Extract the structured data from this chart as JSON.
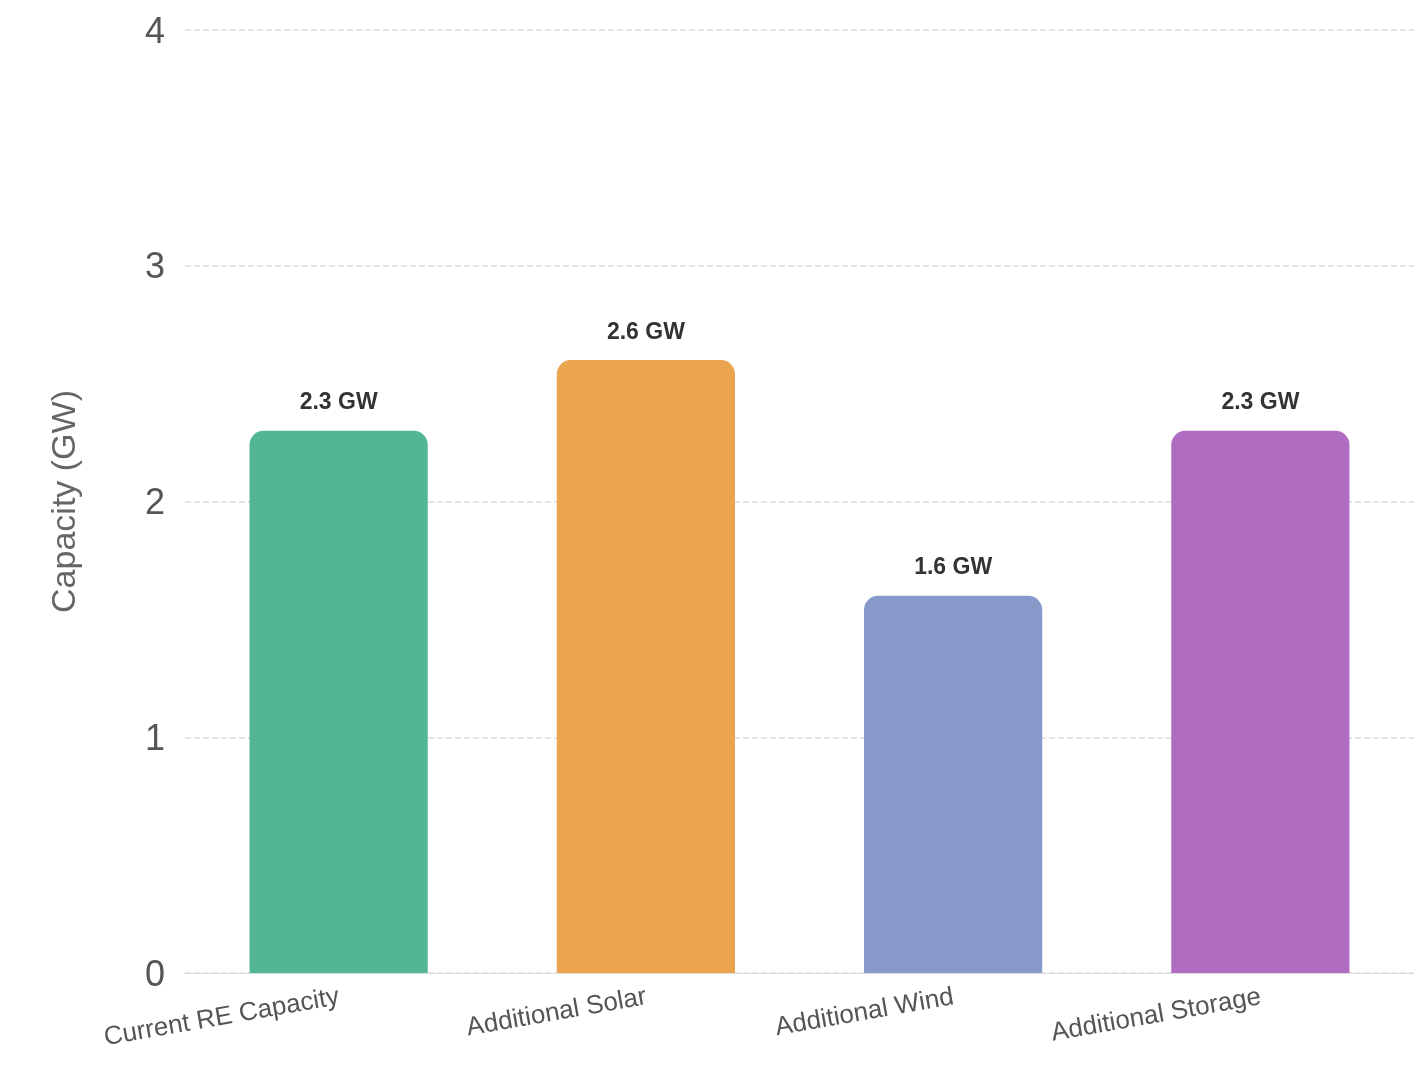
{
  "chart_data": {
    "type": "bar",
    "ylabel": "Capacity (GW)",
    "categories": [
      "Current RE Capacity",
      "Additional Solar",
      "Additional Wind",
      "Additional Storage"
    ],
    "values": [
      2.3,
      2.6,
      1.6,
      2.3
    ],
    "colors": [
      "#52b596",
      "#eba44f",
      "#8799c8",
      "#b06cc0"
    ],
    "value_labels": [
      "2.3 GW",
      "2.6 GW",
      "1.6 GW",
      "2.3 GW"
    ],
    "ylim": [
      0,
      4
    ],
    "yticks": [
      0,
      1,
      2,
      3,
      4
    ],
    "grid": "y"
  }
}
